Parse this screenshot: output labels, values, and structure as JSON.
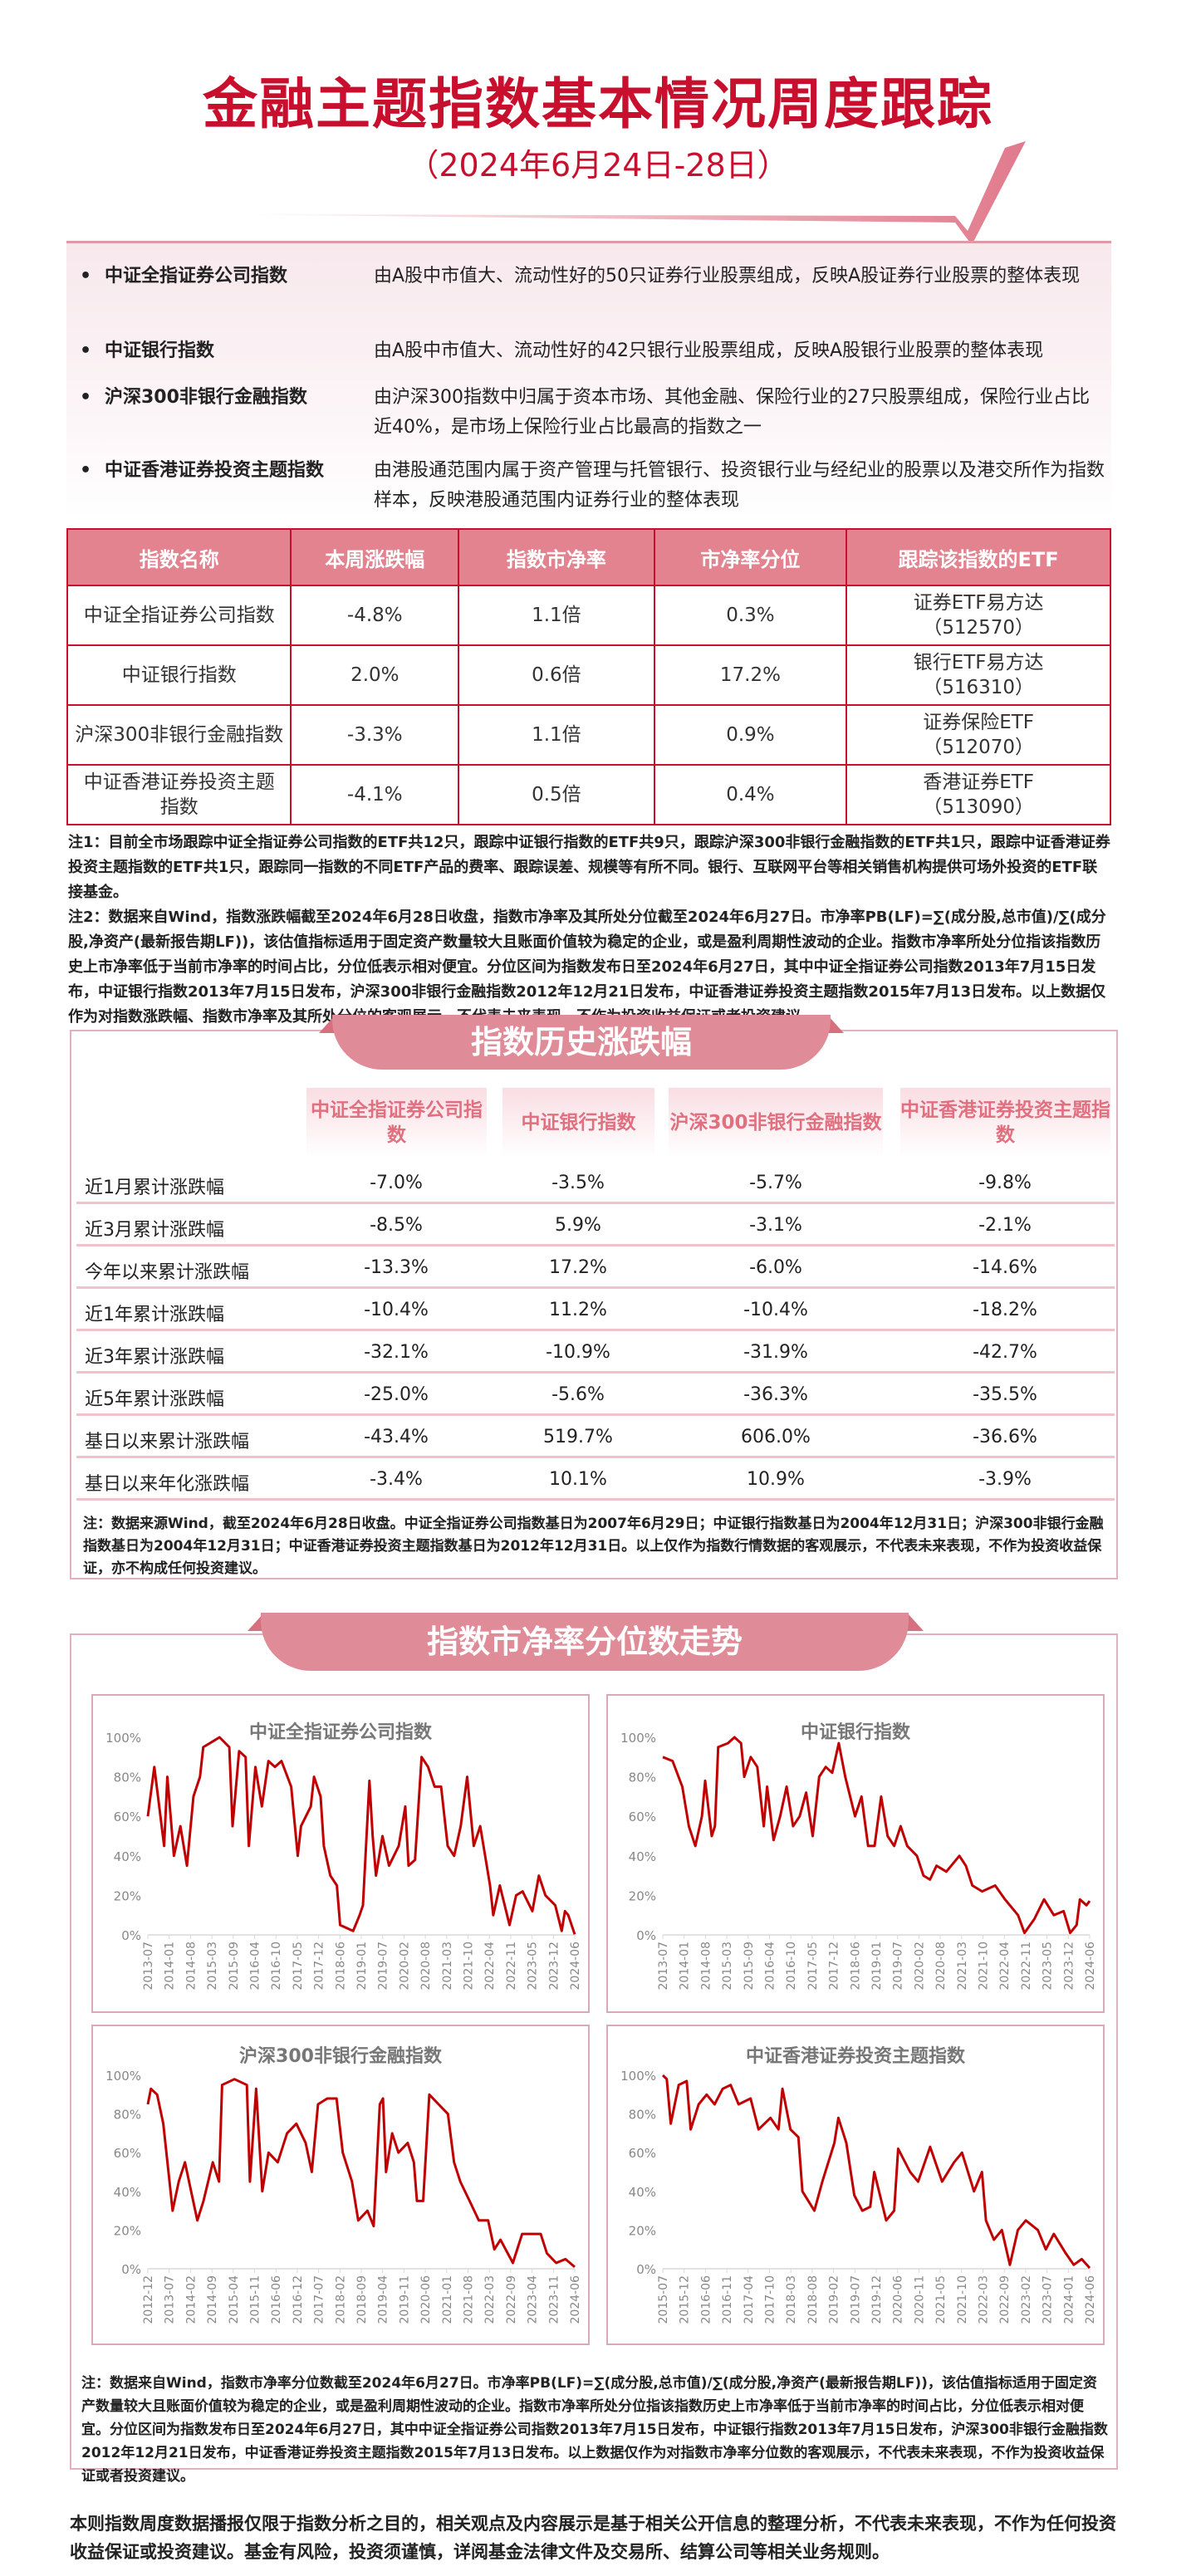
{
  "header": {
    "title": "金融主题指数基本情况周度跟踪",
    "subtitle": "（2024年6月24日-28日）"
  },
  "intro": [
    {
      "name": "中证全指证券公司指数",
      "desc": "由A股中市值大、流动性好的50只证券行业股票组成，反映A股证券行业股票的整体表现"
    },
    {
      "name": "中证银行指数",
      "desc": "由A股中市值大、流动性好的42只银行业股票组成，反映A股银行业股票的整体表现"
    },
    {
      "name": "沪深300非银行金融指数",
      "desc": "由沪深300指数中归属于资本市场、其他金融、保险行业的27只股票组成，保险行业占比近40%，是市场上保险行业占比最高的指数之一"
    },
    {
      "name": "中证香港证券投资主题指数",
      "desc": "由港股通范围内属于资产管理与托管银行、投资银行业与经纪业的股票以及港交所作为指数样本，反映港股通范围内证券行业的整体表现"
    }
  ],
  "summary_table": {
    "headers": [
      "指数名称",
      "本周涨跌幅",
      "指数市净率",
      "市净率分位",
      "跟踪该指数的ETF"
    ],
    "rows": [
      [
        "中证全指证券公司指数",
        "-4.8%",
        "1.1倍",
        "0.3%",
        "证券ETF易方达（512570）"
      ],
      [
        "中证银行指数",
        "2.0%",
        "0.6倍",
        "17.2%",
        "银行ETF易方达（516310）"
      ],
      [
        "沪深300非银行金融指数",
        "-3.3%",
        "1.1倍",
        "0.9%",
        "证券保险ETF（512070）"
      ],
      [
        "中证香港证券投资主题指数",
        "-4.1%",
        "0.5倍",
        "0.4%",
        "香港证券ETF（513090）"
      ]
    ]
  },
  "notes1": [
    "注1：目前全市场跟踪中证全指证券公司指数的ETF共12只，跟踪中证银行指数的ETF共9只，跟踪沪深300非银行金融指数的ETF共1只，跟踪中证香港证券投资主题指数的ETF共1只，跟踪同一指数的不同ETF产品的费率、跟踪误差、规模等有所不同。银行、互联网平台等相关销售机构提供可场外投资的ETF联接基金。",
    "注2：数据来自Wind，指数涨跌幅截至2024年6月28日收盘，指数市净率及其所处分位截至2024年6月27日。市净率PB(LF)=∑(成分股,总市值)/∑(成分股,净资产(最新报告期LF))，该估值指标适用于固定资产数量较大且账面价值较为稳定的企业，或是盈利周期性波动的企业。指数市净率所处分位指该指数历史上市净率低于当前市净率的时间占比，分位低表示相对便宜。分位区间为指数发布日至2024年6月27日，其中中证全指证券公司指数2013年7月15日发布，中证银行指数2013年7月15日发布，沪深300非银行金融指数2012年12月21日发布，中证香港证券投资主题指数2015年7月13日发布。以上数据仅作为对指数涨跌幅、指数市净率及其所处分位的客观展示，不代表未来表现，不作为投资收益保证或者投资建议。"
  ],
  "history": {
    "banner": "指数历史涨跌幅",
    "columns": [
      "中证全指证券公司指数",
      "中证银行指数",
      "沪深300非银行金融指数",
      "中证香港证券投资主题指数"
    ],
    "rows": [
      {
        "label": "近1月累计涨跌幅",
        "values": [
          "-7.0%",
          "-3.5%",
          "-5.7%",
          "-9.8%"
        ]
      },
      {
        "label": "近3月累计涨跌幅",
        "values": [
          "-8.5%",
          "5.9%",
          "-3.1%",
          "-2.1%"
        ]
      },
      {
        "label": "今年以来累计涨跌幅",
        "values": [
          "-13.3%",
          "17.2%",
          "-6.0%",
          "-14.6%"
        ]
      },
      {
        "label": "近1年累计涨跌幅",
        "values": [
          "-10.4%",
          "11.2%",
          "-10.4%",
          "-18.2%"
        ]
      },
      {
        "label": "近3年累计涨跌幅",
        "values": [
          "-32.1%",
          "-10.9%",
          "-31.9%",
          "-42.7%"
        ]
      },
      {
        "label": "近5年累计涨跌幅",
        "values": [
          "-25.0%",
          "-5.6%",
          "-36.3%",
          "-35.5%"
        ]
      },
      {
        "label": "基日以来累计涨跌幅",
        "values": [
          "-43.4%",
          "519.7%",
          "606.0%",
          "-36.6%"
        ]
      },
      {
        "label": "基日以来年化涨跌幅",
        "values": [
          "-3.4%",
          "10.1%",
          "10.9%",
          "-3.9%"
        ]
      }
    ],
    "note": "注：数据来源Wind，截至2024年6月28日收盘。中证全指证券公司指数基日为2007年6月29日；中证银行指数基日为2004年12月31日；沪深300非银行金融指数基日为2004年12月31日；中证香港证券投资主题指数基日为2012年12月31日。以上仅作为指数行情数据的客观展示，不代表未来表现，不作为投资收益保证，亦不构成任何投资建议。"
  },
  "pb_section": {
    "banner": "指数市净率分位数走势",
    "note": "注：数据来自Wind，指数市净率分位数截至2024年6月27日。市净率PB(LF)=∑(成分股,总市值)/∑(成分股,净资产(最新报告期LF))，该估值指标适用于固定资产数量较大且账面价值较为稳定的企业，或是盈利周期性波动的企业。指数市净率所处分位指该指数历史上市净率低于当前市净率的时间占比，分位低表示相对便宜。分位区间为指数发布日至2024年6月27日，其中中证全指证券公司指数2013年7月15日发布，中证银行指数2013年7月15日发布，沪深300非银行金融指数2012年12月21日发布，中证香港证券投资主题指数2015年7月13日发布。以上数据仅作为对指数市净率分位数的客观展示，不代表未来表现，不作为投资收益保证或者投资建议。"
  },
  "chart_data": [
    {
      "type": "line",
      "title": "中证全指证券公司指数",
      "ylim": [
        0,
        100
      ],
      "yticks": [
        "0%",
        "20%",
        "40%",
        "60%",
        "80%",
        "100%"
      ],
      "xticks": [
        "2013-07",
        "2014-01",
        "2014-08",
        "2015-03",
        "2015-09",
        "2016-04",
        "2016-10",
        "2017-05",
        "2017-12",
        "2018-06",
        "2019-01",
        "2019-07",
        "2020-02",
        "2020-08",
        "2021-03",
        "2021-10",
        "2022-04",
        "2022-11",
        "2023-05",
        "2023-12",
        "2024-06"
      ],
      "color": "#c00000",
      "grid": false,
      "x": [
        "2013-07",
        "2013-09",
        "2013-12",
        "2014-01",
        "2014-03",
        "2014-05",
        "2014-07",
        "2014-09",
        "2014-11",
        "2014-12",
        "2015-03",
        "2015-05",
        "2015-08",
        "2015-09",
        "2015-11",
        "2016-01",
        "2016-02",
        "2016-04",
        "2016-06",
        "2016-08",
        "2016-10",
        "2016-12",
        "2017-03",
        "2017-05",
        "2017-06",
        "2017-09",
        "2017-10",
        "2017-12",
        "2018-01",
        "2018-03",
        "2018-05",
        "2018-06",
        "2018-10",
        "2018-12",
        "2019-01",
        "2019-03",
        "2019-04",
        "2019-05",
        "2019-07",
        "2019-09",
        "2019-12",
        "2020-02",
        "2020-03",
        "2020-05",
        "2020-07",
        "2020-09",
        "2020-11",
        "2021-01",
        "2021-03",
        "2021-05",
        "2021-07",
        "2021-09",
        "2021-11",
        "2022-01",
        "2022-03",
        "2022-04",
        "2022-05",
        "2022-07",
        "2022-10",
        "2022-12",
        "2023-02",
        "2023-05",
        "2023-07",
        "2023-09",
        "2023-12",
        "2024-02",
        "2024-03",
        "2024-04",
        "2024-06"
      ],
      "y": [
        60,
        85,
        45,
        80,
        40,
        55,
        35,
        70,
        80,
        95,
        98,
        100,
        95,
        55,
        93,
        90,
        45,
        85,
        65,
        88,
        85,
        88,
        75,
        40,
        55,
        65,
        80,
        70,
        45,
        30,
        25,
        5,
        2,
        10,
        15,
        78,
        50,
        30,
        50,
        35,
        45,
        65,
        35,
        38,
        90,
        85,
        75,
        75,
        45,
        40,
        55,
        80,
        45,
        55,
        35,
        25,
        10,
        25,
        5,
        20,
        22,
        12,
        30,
        20,
        15,
        2,
        12,
        10,
        0.3
      ]
    },
    {
      "type": "line",
      "title": "中证银行指数",
      "ylim": [
        0,
        100
      ],
      "yticks": [
        "0%",
        "20%",
        "40%",
        "60%",
        "80%",
        "100%"
      ],
      "xticks": [
        "2013-07",
        "2014-01",
        "2014-08",
        "2015-03",
        "2015-09",
        "2016-04",
        "2016-10",
        "2017-05",
        "2017-12",
        "2018-06",
        "2019-01",
        "2019-07",
        "2020-02",
        "2020-08",
        "2021-03",
        "2021-10",
        "2022-04",
        "2022-11",
        "2023-05",
        "2023-12",
        "2024-06"
      ],
      "color": "#c00000",
      "grid": false,
      "x": [
        "2013-07",
        "2013-10",
        "2014-01",
        "2014-03",
        "2014-05",
        "2014-07",
        "2014-08",
        "2014-10",
        "2014-11",
        "2014-12",
        "2015-03",
        "2015-05",
        "2015-07",
        "2015-08",
        "2015-10",
        "2015-12",
        "2016-02",
        "2016-03",
        "2016-05",
        "2016-07",
        "2016-09",
        "2016-11",
        "2017-01",
        "2017-03",
        "2017-05",
        "2017-07",
        "2017-09",
        "2017-11",
        "2018-01",
        "2018-03",
        "2018-06",
        "2018-08",
        "2018-10",
        "2018-12",
        "2019-02",
        "2019-04",
        "2019-06",
        "2019-08",
        "2019-10",
        "2020-01",
        "2020-03",
        "2020-05",
        "2020-07",
        "2020-10",
        "2021-02",
        "2021-04",
        "2021-06",
        "2021-09",
        "2022-01",
        "2022-04",
        "2022-08",
        "2022-10",
        "2023-01",
        "2023-04",
        "2023-07",
        "2023-10",
        "2023-12",
        "2024-02",
        "2024-03",
        "2024-05",
        "2024-06"
      ],
      "y": [
        90,
        88,
        75,
        55,
        45,
        60,
        78,
        50,
        55,
        95,
        97,
        100,
        97,
        80,
        90,
        85,
        55,
        75,
        48,
        60,
        75,
        55,
        60,
        72,
        50,
        80,
        85,
        82,
        97,
        80,
        60,
        70,
        45,
        45,
        70,
        50,
        45,
        55,
        45,
        40,
        30,
        28,
        35,
        32,
        40,
        35,
        25,
        22,
        25,
        18,
        10,
        1,
        8,
        18,
        10,
        12,
        1,
        5,
        18,
        15,
        17.2
      ]
    },
    {
      "type": "line",
      "title": "沪深300非银行金融指数",
      "ylim": [
        0,
        100
      ],
      "yticks": [
        "0%",
        "20%",
        "40%",
        "60%",
        "80%",
        "100%"
      ],
      "xticks": [
        "2012-12",
        "2013-07",
        "2014-02",
        "2014-09",
        "2015-04",
        "2015-11",
        "2016-06",
        "2016-12",
        "2017-07",
        "2018-02",
        "2018-09",
        "2019-04",
        "2019-11",
        "2020-06",
        "2021-01",
        "2021-08",
        "2022-03",
        "2022-09",
        "2023-04",
        "2023-11",
        "2024-06"
      ],
      "color": "#c00000",
      "grid": false,
      "x": [
        "2012-12",
        "2013-01",
        "2013-03",
        "2013-05",
        "2013-07",
        "2013-08",
        "2013-10",
        "2013-12",
        "2014-02",
        "2014-04",
        "2014-06",
        "2014-09",
        "2014-11",
        "2014-12",
        "2015-04",
        "2015-08",
        "2015-09",
        "2015-11",
        "2016-01",
        "2016-03",
        "2016-06",
        "2016-09",
        "2016-12",
        "2017-03",
        "2017-05",
        "2017-07",
        "2017-10",
        "2018-01",
        "2018-03",
        "2018-06",
        "2018-08",
        "2018-11",
        "2019-01",
        "2019-03",
        "2019-04",
        "2019-05",
        "2019-07",
        "2019-09",
        "2019-12",
        "2020-02",
        "2020-03",
        "2020-05",
        "2020-07",
        "2020-10",
        "2021-01",
        "2021-03",
        "2021-05",
        "2021-08",
        "2021-11",
        "2022-02",
        "2022-04",
        "2022-06",
        "2022-10",
        "2023-01",
        "2023-04",
        "2023-07",
        "2023-09",
        "2023-12",
        "2024-03",
        "2024-06"
      ],
      "y": [
        85,
        93,
        90,
        75,
        45,
        30,
        45,
        55,
        40,
        25,
        35,
        55,
        45,
        95,
        98,
        95,
        45,
        93,
        40,
        60,
        55,
        70,
        75,
        65,
        50,
        85,
        88,
        88,
        60,
        45,
        25,
        30,
        22,
        85,
        88,
        50,
        70,
        60,
        65,
        55,
        35,
        35,
        90,
        85,
        80,
        55,
        45,
        35,
        25,
        25,
        10,
        15,
        3,
        18,
        18,
        18,
        8,
        3,
        5,
        0.9
      ]
    },
    {
      "type": "line",
      "title": "中证香港证券投资主题指数",
      "ylim": [
        0,
        100
      ],
      "yticks": [
        "0%",
        "20%",
        "40%",
        "60%",
        "80%",
        "100%"
      ],
      "xticks": [
        "2015-07",
        "2015-12",
        "2016-06",
        "2016-11",
        "2017-04",
        "2017-10",
        "2018-03",
        "2018-08",
        "2019-02",
        "2019-07",
        "2019-12",
        "2020-06",
        "2020-11",
        "2021-05",
        "2021-10",
        "2022-03",
        "2022-09",
        "2023-02",
        "2023-07",
        "2024-01",
        "2024-06"
      ],
      "color": "#c00000",
      "grid": false,
      "x": [
        "2015-07",
        "2015-08",
        "2015-09",
        "2015-11",
        "2016-01",
        "2016-02",
        "2016-04",
        "2016-06",
        "2016-08",
        "2016-10",
        "2016-12",
        "2017-02",
        "2017-05",
        "2017-07",
        "2017-10",
        "2017-12",
        "2018-01",
        "2018-03",
        "2018-05",
        "2018-06",
        "2018-09",
        "2018-11",
        "2019-02",
        "2019-03",
        "2019-05",
        "2019-07",
        "2019-09",
        "2019-11",
        "2019-12",
        "2020-03",
        "2020-05",
        "2020-06",
        "2020-09",
        "2020-11",
        "2021-02",
        "2021-05",
        "2021-08",
        "2021-10",
        "2022-01",
        "2022-03",
        "2022-04",
        "2022-06",
        "2022-08",
        "2022-10",
        "2022-12",
        "2023-02",
        "2023-05",
        "2023-07",
        "2023-09",
        "2023-12",
        "2024-02",
        "2024-04",
        "2024-06"
      ],
      "y": [
        100,
        98,
        75,
        95,
        97,
        72,
        85,
        90,
        85,
        93,
        95,
        85,
        88,
        72,
        78,
        72,
        93,
        72,
        68,
        40,
        30,
        45,
        65,
        78,
        65,
        38,
        30,
        32,
        50,
        25,
        30,
        62,
        50,
        45,
        63,
        45,
        55,
        60,
        40,
        50,
        25,
        15,
        20,
        2,
        20,
        25,
        20,
        10,
        18,
        8,
        2,
        5,
        0.4
      ]
    }
  ],
  "footer": "本则指数周度数据播报仅限于指数分析之目的，相关观点及内容展示是基于相关公开信息的整理分析，不代表未来表现，不作为任何投资收益保证或投资建议。基金有风险，投资须谨慎，详阅基金法律文件及交易所、结算公司等相关业务规则。"
}
